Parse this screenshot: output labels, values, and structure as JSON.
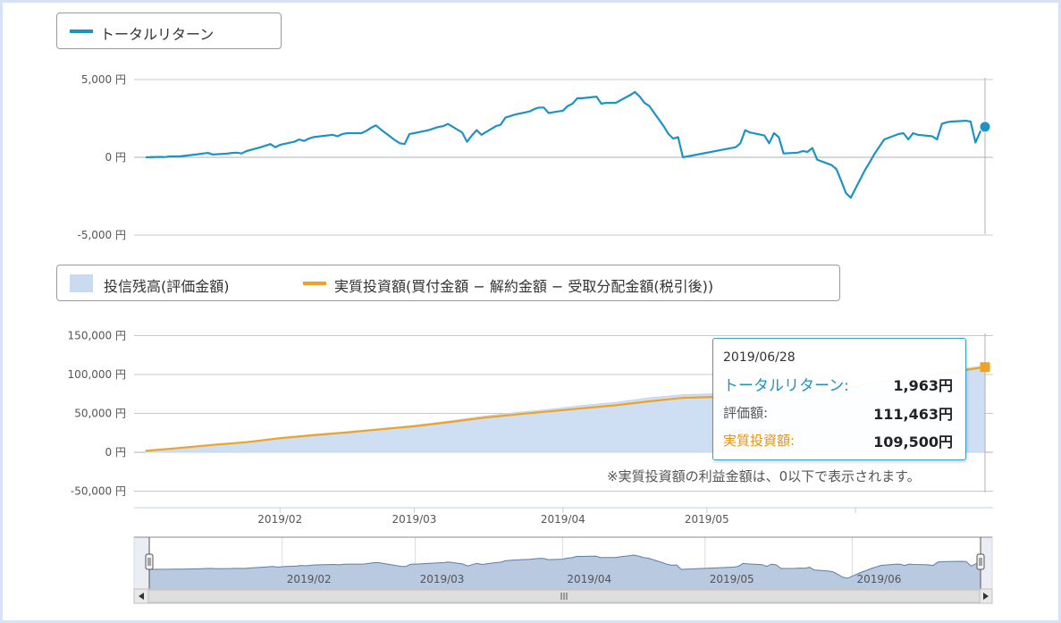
{
  "chart_data": [
    {
      "type": "line",
      "legend": "トータルリターン",
      "legend_placement": "top-left",
      "unit": "円",
      "ylim": [
        -5000,
        5000
      ],
      "yticks": [
        "5,000 円",
        "0 円",
        "-5,000 円"
      ],
      "ytick_values": [
        5000,
        0,
        -5000
      ],
      "color": "#1e93c3",
      "grid": true,
      "series": [
        {
          "x": [
            "2019-01-04",
            "2019-01-07",
            "2019-01-08",
            "2019-01-09",
            "2019-01-10",
            "2019-01-11",
            "2019-01-15",
            "2019-01-16",
            "2019-01-17",
            "2019-01-18",
            "2019-01-21",
            "2019-01-22",
            "2019-01-23",
            "2019-01-24",
            "2019-01-25",
            "2019-01-28",
            "2019-01-29",
            "2019-01-30",
            "2019-01-31",
            "2019-02-01",
            "2019-02-04",
            "2019-02-05",
            "2019-02-06",
            "2019-02-07",
            "2019-02-08",
            "2019-02-12",
            "2019-02-13",
            "2019-02-14",
            "2019-02-15",
            "2019-02-18",
            "2019-02-19",
            "2019-02-20",
            "2019-02-21",
            "2019-02-22",
            "2019-02-25",
            "2019-02-26",
            "2019-02-27",
            "2019-02-28",
            "2019-03-01",
            "2019-03-04",
            "2019-03-05",
            "2019-03-06",
            "2019-03-07",
            "2019-03-08",
            "2019-03-11",
            "2019-03-12",
            "2019-03-13",
            "2019-03-14",
            "2019-03-15",
            "2019-03-18",
            "2019-03-19",
            "2019-03-20",
            "2019-03-22",
            "2019-03-25",
            "2019-03-26",
            "2019-03-27",
            "2019-03-28",
            "2019-03-29",
            "2019-04-01",
            "2019-04-02",
            "2019-04-03",
            "2019-04-04",
            "2019-04-05",
            "2019-04-08",
            "2019-04-09",
            "2019-04-10",
            "2019-04-11",
            "2019-04-12",
            "2019-04-15",
            "2019-04-16",
            "2019-04-17",
            "2019-04-18",
            "2019-04-19",
            "2019-04-22",
            "2019-04-23",
            "2019-04-24",
            "2019-04-25",
            "2019-04-26",
            "2019-05-07",
            "2019-05-08",
            "2019-05-09",
            "2019-05-10",
            "2019-05-13",
            "2019-05-14",
            "2019-05-15",
            "2019-05-16",
            "2019-05-17",
            "2019-05-20",
            "2019-05-21",
            "2019-05-22",
            "2019-05-23",
            "2019-05-24",
            "2019-05-27",
            "2019-05-28",
            "2019-05-29",
            "2019-05-30",
            "2019-05-31",
            "2019-06-03",
            "2019-06-04",
            "2019-06-05",
            "2019-06-06",
            "2019-06-07",
            "2019-06-10",
            "2019-06-11",
            "2019-06-12",
            "2019-06-13",
            "2019-06-14",
            "2019-06-17",
            "2019-06-18",
            "2019-06-19",
            "2019-06-20",
            "2019-06-21",
            "2019-06-24",
            "2019-06-25",
            "2019-06-26",
            "2019-06-27",
            "2019-06-28"
          ],
          "values": [
            0,
            30,
            20,
            60,
            60,
            60,
            200,
            250,
            280,
            180,
            240,
            280,
            300,
            250,
            400,
            650,
            750,
            850,
            650,
            800,
            1000,
            1150,
            1050,
            1200,
            1300,
            1450,
            1350,
            1500,
            1550,
            1550,
            1700,
            1900,
            2050,
            1800,
            1100,
            900,
            850,
            1500,
            1550,
            1750,
            1850,
            1950,
            2000,
            2150,
            1600,
            1000,
            1400,
            1750,
            1450,
            2000,
            2100,
            2550,
            2750,
            2950,
            3100,
            3200,
            3200,
            2850,
            3000,
            3300,
            3450,
            3800,
            3800,
            3900,
            3450,
            3500,
            3500,
            3500,
            4000,
            4200,
            3900,
            3500,
            3300,
            2000,
            1500,
            1200,
            1300,
            0,
            650,
            900,
            1750,
            1600,
            1400,
            900,
            1550,
            1300,
            250,
            300,
            400,
            350,
            600,
            -150,
            -500,
            -750,
            -1500,
            -2300,
            -2600,
            -800,
            -300,
            250,
            700,
            1150,
            1500,
            1550,
            1150,
            1550,
            1450,
            1350,
            1150,
            2150,
            2250,
            2300,
            2350,
            2300,
            950,
            1650,
            1963
          ]
        }
      ]
    },
    {
      "type": "area",
      "legend": [
        "投信残高(評価金額)",
        "実質投資額(買付金額 − 解約金額 − 受取分配金額(税引後))"
      ],
      "legend_placement": "top-left",
      "ylim": [
        -60000,
        150000
      ],
      "yticks": [
        "150,000 円",
        "100,000 円",
        "50,000 円",
        "0 円",
        "-50,000 円"
      ],
      "ytick_values": [
        150000,
        100000,
        50000,
        0,
        -50000
      ],
      "xticks": [
        "2019/02",
        "2019/03",
        "2019/04",
        "2019/05"
      ],
      "xtick_dates": [
        "2019-02-01",
        "2019-03-01",
        "2019-04-01",
        "2019-05-01"
      ],
      "colors": {
        "valuation": "#c9dbf1",
        "investment": "#f0a323"
      },
      "grid": true,
      "x": [
        "2019-01-04",
        "2019-01-11",
        "2019-01-18",
        "2019-01-25",
        "2019-02-01",
        "2019-02-08",
        "2019-02-15",
        "2019-02-22",
        "2019-03-01",
        "2019-03-08",
        "2019-03-15",
        "2019-03-22",
        "2019-03-29",
        "2019-04-05",
        "2019-04-12",
        "2019-04-19",
        "2019-04-26",
        "2019-05-10",
        "2019-05-17",
        "2019-05-24",
        "2019-05-31",
        "2019-06-07",
        "2019-06-14",
        "2019-06-21",
        "2019-06-28"
      ],
      "series": [
        {
          "name": "投信残高(評価金額)",
          "values": [
            2000,
            5500,
            9500,
            13500,
            19000,
            23000,
            26500,
            30500,
            34500,
            40000,
            46000,
            51000,
            55000,
            60000,
            64000,
            70000,
            74000,
            76500,
            80000,
            82000,
            86000,
            94000,
            100000,
            105000,
            111463
          ]
        },
        {
          "name": "実質投資額(買付金額 − 解約金額 − 受取分配金額(税引後))",
          "values": [
            2000,
            5500,
            9500,
            13000,
            18000,
            22000,
            25500,
            29500,
            33500,
            38500,
            44000,
            48500,
            52500,
            56500,
            60500,
            65500,
            70000,
            72500,
            75500,
            79000,
            84000,
            91000,
            97500,
            103000,
            109500
          ]
        }
      ]
    }
  ],
  "navigator": {
    "labels": [
      "2019/02",
      "2019/03",
      "2019/04",
      "2019/05",
      "2019/06"
    ],
    "label_dates": [
      "2019-02-01",
      "2019-03-01",
      "2019-04-01",
      "2019-05-01",
      "2019-06-01"
    ],
    "fill_color": "#b8c9e0",
    "line_color": "#5d7fa7",
    "scroll_left_icon": "triangle-left",
    "scroll_right_icon": "triangle-right",
    "scroll_grip_icon": "grip-lines"
  },
  "tooltip": {
    "date": "2019/06/28",
    "rows": [
      {
        "label": "トータルリターン:",
        "value": "1,963円",
        "color": "#1e93c3"
      },
      {
        "label": "評価額:",
        "value": "111,463円",
        "color": "#555555"
      },
      {
        "label": "実質投資額:",
        "value": "109,500円",
        "color": "#e39415"
      }
    ]
  },
  "note": "※実質投資額の利益金額は、0以下で表示されます。"
}
